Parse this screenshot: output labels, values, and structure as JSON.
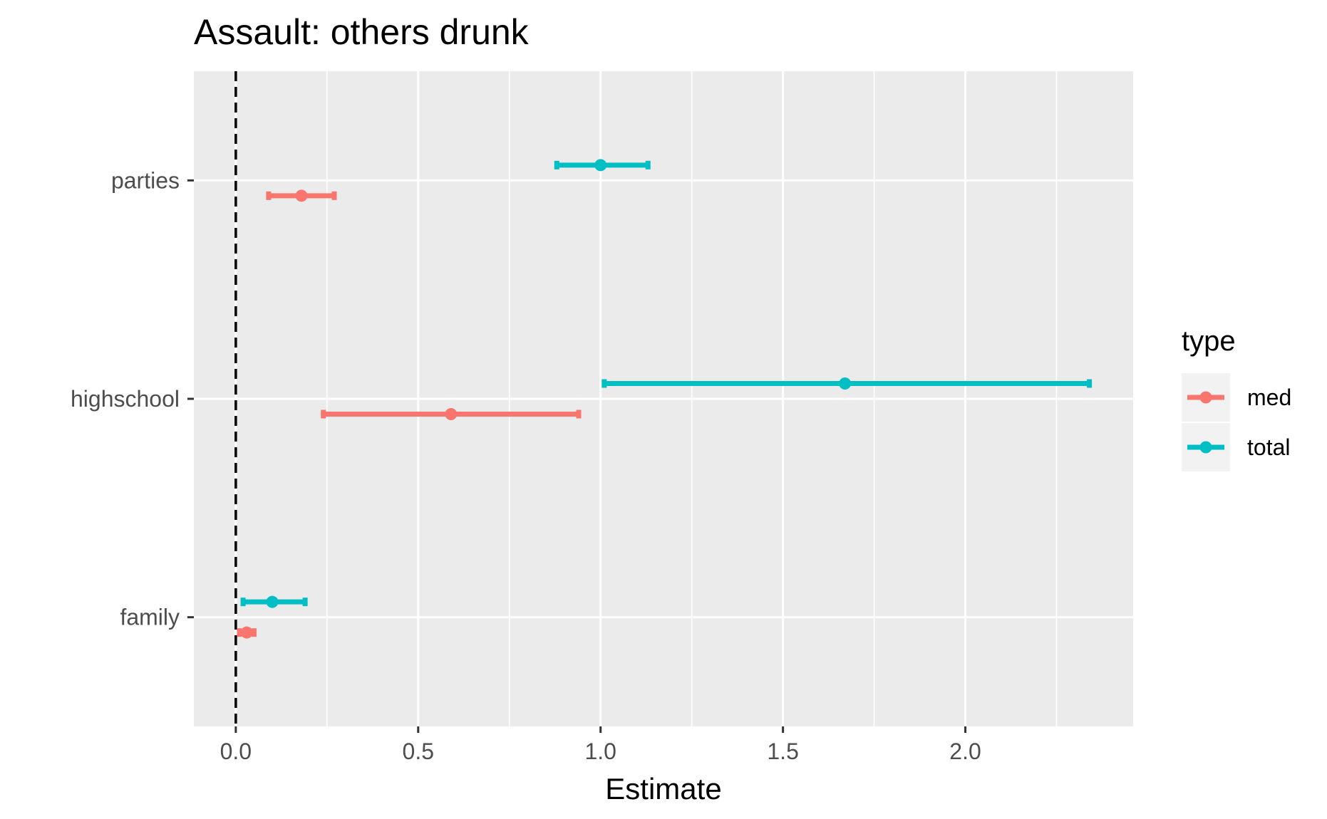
{
  "chart_data": {
    "type": "errorbar-dot",
    "title": "Assault: others drunk",
    "xlabel": "Estimate",
    "ylabel": "",
    "xlim": [
      -0.115,
      2.46
    ],
    "x_ticks": [
      0.0,
      0.5,
      1.0,
      1.5,
      2.0
    ],
    "x_tick_labels": [
      "0.0",
      "0.5",
      "1.0",
      "1.5",
      "2.0"
    ],
    "categories": [
      "family",
      "highschool",
      "parties"
    ],
    "reference_line": {
      "x": 0,
      "style": "dashed"
    },
    "grid": true,
    "legend": {
      "title": "type",
      "placement": "right"
    },
    "series": [
      {
        "name": "med",
        "color": "#F8766D",
        "points": [
          {
            "category": "family",
            "estimate": 0.03,
            "lower": 0.01,
            "upper": 0.05
          },
          {
            "category": "highschool",
            "estimate": 0.59,
            "lower": 0.24,
            "upper": 0.94
          },
          {
            "category": "parties",
            "estimate": 0.18,
            "lower": 0.09,
            "upper": 0.27
          }
        ]
      },
      {
        "name": "total",
        "color": "#00BFC4",
        "points": [
          {
            "category": "family",
            "estimate": 0.1,
            "lower": 0.02,
            "upper": 0.19
          },
          {
            "category": "highschool",
            "estimate": 1.67,
            "lower": 1.01,
            "upper": 2.34
          },
          {
            "category": "parties",
            "estimate": 1.0,
            "lower": 0.88,
            "upper": 1.13
          }
        ]
      }
    ]
  }
}
